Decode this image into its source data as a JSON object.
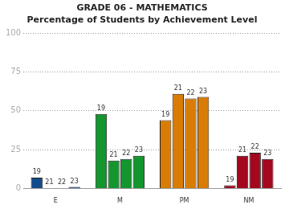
{
  "chart_data": {
    "type": "bar",
    "title": "GRADE 06 - MATHEMATICS",
    "subtitle": "Percentage of Students by Achievement Level",
    "categories": [
      "E",
      "M",
      "PM",
      "NM"
    ],
    "series": [
      {
        "name": "19",
        "colors": [
          "#124a8c",
          "#14962e",
          "#d97c06",
          "#a3081f"
        ],
        "values": [
          7,
          48,
          44,
          2
        ]
      },
      {
        "name": "21",
        "colors": [
          "#124a8c",
          "#14962e",
          "#d97c06",
          "#a3081f"
        ],
        "values": [
          0,
          18,
          61,
          21
        ]
      },
      {
        "name": "22",
        "colors": [
          "#124a8c",
          "#14962e",
          "#d97c06",
          "#a3081f"
        ],
        "values": [
          0,
          19,
          58,
          23
        ]
      },
      {
        "name": "23",
        "colors": [
          "#124a8c",
          "#14962e",
          "#d97c06",
          "#a3081f"
        ],
        "values": [
          1,
          21,
          59,
          19
        ]
      }
    ],
    "ylim": [
      0,
      100
    ],
    "yticks": [
      0,
      25,
      50,
      75,
      100
    ],
    "grid": true
  }
}
